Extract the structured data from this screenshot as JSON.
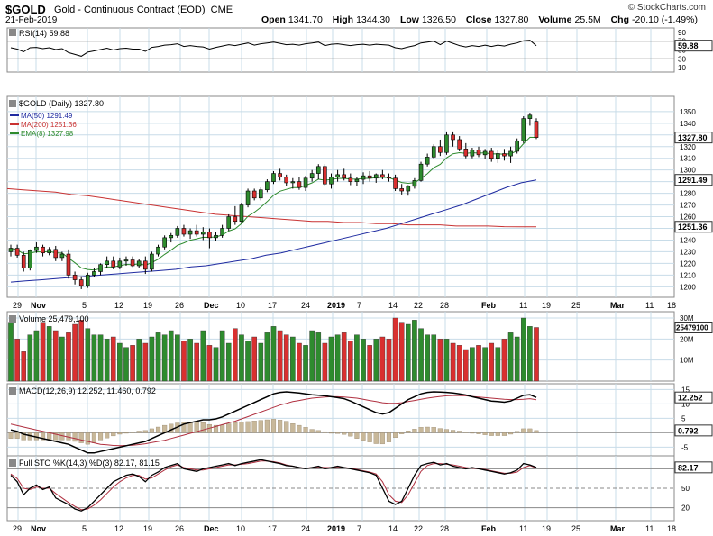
{
  "header": {
    "symbol": "$GOLD",
    "description": "Gold - Continuous Contract (EOD)",
    "exchange": "CME",
    "date": "21-Feb-2019",
    "brand": "© StockCharts.com",
    "open_label": "Open",
    "open": "1341.70",
    "high_label": "High",
    "high": "1344.30",
    "low_label": "Low",
    "low": "1326.50",
    "close_label": "Close",
    "close": "1327.80",
    "volume_label": "Volume",
    "volume": "25.5M",
    "chg_label": "Chg",
    "chg": "-20.10 (-1.49%)"
  },
  "colors": {
    "up": "#2e8b2e",
    "down": "#d93030",
    "grid": "#c8dce8",
    "ma50": "#1e2aa0",
    "ma200": "#c83232",
    "ema8": "#2e8b2e",
    "rsi": "#000000",
    "macd": "#000000",
    "signal": "#b03040",
    "hist": "#c8b89a",
    "stok": "#000000",
    "stod": "#b03040"
  },
  "chart_data": [
    {
      "type": "candlestick",
      "legend": "$GOLD (Daily) 1327.80",
      "ylim": [
        1191,
        1363
      ],
      "y_ticks": [
        1200,
        1210,
        1220,
        1230,
        1240,
        1250,
        1260,
        1270,
        1280,
        1290,
        1300,
        1310,
        1320,
        1330,
        1340,
        1350
      ],
      "last_value_label": "1327.80",
      "x_labels": [
        "29",
        "Nov",
        "5",
        "12",
        "19",
        "26",
        "Dec",
        "10",
        "17",
        "24",
        "2019",
        "7",
        "14",
        "22",
        "28",
        "Feb",
        "11",
        "19",
        "25",
        "Mar",
        "11",
        "18"
      ],
      "ohlc": [
        [
          1230,
          1236,
          1226,
          1233
        ],
        [
          1233,
          1236,
          1225,
          1227
        ],
        [
          1227,
          1230,
          1213,
          1216
        ],
        [
          1216,
          1232,
          1214,
          1231
        ],
        [
          1231,
          1238,
          1229,
          1234
        ],
        [
          1234,
          1236,
          1226,
          1229
        ],
        [
          1229,
          1234,
          1227,
          1232
        ],
        [
          1232,
          1235,
          1222,
          1225
        ],
        [
          1225,
          1230,
          1222,
          1228
        ],
        [
          1228,
          1232,
          1207,
          1210
        ],
        [
          1210,
          1213,
          1202,
          1206
        ],
        [
          1206,
          1209,
          1198,
          1201
        ],
        [
          1201,
          1212,
          1199,
          1210
        ],
        [
          1210,
          1216,
          1208,
          1213
        ],
        [
          1213,
          1220,
          1210,
          1219
        ],
        [
          1219,
          1226,
          1216,
          1222
        ],
        [
          1222,
          1226,
          1215,
          1217
        ],
        [
          1217,
          1225,
          1215,
          1222
        ],
        [
          1222,
          1226,
          1218,
          1223
        ],
        [
          1223,
          1226,
          1217,
          1218
        ],
        [
          1218,
          1224,
          1216,
          1222
        ],
        [
          1222,
          1226,
          1211,
          1215
        ],
        [
          1215,
          1230,
          1213,
          1228
        ],
        [
          1228,
          1236,
          1226,
          1234
        ],
        [
          1234,
          1244,
          1232,
          1242
        ],
        [
          1242,
          1246,
          1238,
          1244
        ],
        [
          1244,
          1252,
          1242,
          1250
        ],
        [
          1250,
          1253,
          1243,
          1245
        ],
        [
          1245,
          1250,
          1241,
          1248
        ],
        [
          1248,
          1253,
          1243,
          1245
        ],
        [
          1245,
          1251,
          1240,
          1247
        ],
        [
          1247,
          1250,
          1233,
          1242
        ],
        [
          1242,
          1247,
          1239,
          1244
        ],
        [
          1244,
          1253,
          1242,
          1250
        ],
        [
          1250,
          1262,
          1248,
          1260
        ],
        [
          1260,
          1269,
          1253,
          1256
        ],
        [
          1256,
          1272,
          1254,
          1270
        ],
        [
          1270,
          1284,
          1268,
          1282
        ],
        [
          1282,
          1284,
          1274,
          1276
        ],
        [
          1276,
          1285,
          1274,
          1283
        ],
        [
          1283,
          1292,
          1281,
          1290
        ],
        [
          1290,
          1299,
          1288,
          1297
        ],
        [
          1297,
          1301,
          1291,
          1294
        ],
        [
          1294,
          1296,
          1286,
          1289
        ],
        [
          1289,
          1293,
          1284,
          1290
        ],
        [
          1290,
          1294,
          1283,
          1285
        ],
        [
          1285,
          1295,
          1282,
          1293
        ],
        [
          1293,
          1300,
          1290,
          1297
        ],
        [
          1297,
          1305,
          1292,
          1303
        ],
        [
          1303,
          1305,
          1286,
          1288
        ],
        [
          1288,
          1297,
          1284,
          1294
        ],
        [
          1294,
          1300,
          1290,
          1296
        ],
        [
          1296,
          1301,
          1291,
          1293
        ],
        [
          1293,
          1297,
          1287,
          1290
        ],
        [
          1290,
          1294,
          1286,
          1292
        ],
        [
          1292,
          1298,
          1288,
          1295
        ],
        [
          1295,
          1299,
          1290,
          1293
        ],
        [
          1293,
          1297,
          1289,
          1296
        ],
        [
          1296,
          1300,
          1292,
          1294
        ],
        [
          1294,
          1297,
          1290,
          1293
        ],
        [
          1293,
          1296,
          1282,
          1284
        ],
        [
          1284,
          1288,
          1279,
          1282
        ],
        [
          1282,
          1287,
          1278,
          1286
        ],
        [
          1286,
          1293,
          1284,
          1291
        ],
        [
          1291,
          1307,
          1290,
          1305
        ],
        [
          1305,
          1314,
          1303,
          1311
        ],
        [
          1311,
          1322,
          1309,
          1320
        ],
        [
          1320,
          1326,
          1312,
          1315
        ],
        [
          1315,
          1333,
          1313,
          1330
        ],
        [
          1330,
          1333,
          1320,
          1326
        ],
        [
          1326,
          1329,
          1316,
          1318
        ],
        [
          1318,
          1323,
          1310,
          1312
        ],
        [
          1312,
          1319,
          1310,
          1317
        ],
        [
          1317,
          1320,
          1311,
          1313
        ],
        [
          1313,
          1318,
          1309,
          1316
        ],
        [
          1316,
          1319,
          1307,
          1310
        ],
        [
          1310,
          1317,
          1306,
          1314
        ],
        [
          1314,
          1318,
          1308,
          1312
        ],
        [
          1312,
          1320,
          1306,
          1316
        ],
        [
          1316,
          1327,
          1314,
          1325
        ],
        [
          1325,
          1346,
          1323,
          1344
        ],
        [
          1344,
          1349,
          1338,
          1347
        ],
        [
          1341.7,
          1344.3,
          1326.5,
          1327.8
        ]
      ],
      "ma50": {
        "label": "MA(50) 1291.49",
        "last": "1291.49",
        "values": [
          1204,
          1205,
          1206,
          1207,
          1208,
          1209,
          1210,
          1211,
          1212,
          1213,
          1214,
          1215,
          1217,
          1218,
          1220,
          1222,
          1224,
          1227,
          1229,
          1232,
          1235,
          1238,
          1241,
          1244,
          1247,
          1250,
          1254,
          1258,
          1262,
          1266,
          1270,
          1275,
          1280,
          1285,
          1289,
          1291.49
        ]
      },
      "ma200": {
        "label": "MA(200) 1251.36",
        "last": "1251.36",
        "values": [
          1284,
          1283,
          1282,
          1281,
          1279,
          1278,
          1276,
          1274,
          1272,
          1270,
          1268,
          1266,
          1264,
          1262,
          1261,
          1260,
          1259,
          1258,
          1257,
          1256,
          1256,
          1255,
          1255,
          1254,
          1254,
          1253,
          1253,
          1253,
          1252,
          1252,
          1252,
          1251.5,
          1251.4,
          1251.36
        ]
      },
      "ema8": {
        "label": "EMA(8) 1327.98",
        "last": "1327.98"
      }
    },
    {
      "type": "line",
      "name": "RSI(14) 59.88",
      "ylim": [
        0,
        100
      ],
      "y_ticks": [
        90,
        70,
        50,
        30,
        10
      ],
      "last_value_label": "59.88",
      "values": [
        55,
        52,
        46,
        55,
        56,
        53,
        55,
        51,
        53,
        44,
        40,
        36,
        45,
        48,
        51,
        54,
        50,
        53,
        54,
        52,
        52,
        47,
        56,
        58,
        61,
        62,
        64,
        58,
        60,
        58,
        57,
        52,
        56,
        59,
        62,
        60,
        63,
        66,
        61,
        64,
        66,
        68,
        65,
        62,
        63,
        61,
        64,
        66,
        68,
        60,
        63,
        64,
        62,
        60,
        62,
        63,
        61,
        63,
        62,
        61,
        55,
        53,
        57,
        60,
        66,
        68,
        70,
        62,
        70,
        65,
        60,
        57,
        60,
        58,
        61,
        58,
        61,
        59,
        63,
        66,
        71,
        72,
        59.88
      ]
    },
    {
      "type": "bar",
      "name": "Volume 25,479,100",
      "y_ticks": [
        "30M",
        "20M",
        "10M"
      ],
      "last_value_label": "25479100",
      "values_millions": [
        28,
        20,
        14,
        22,
        24,
        28,
        26,
        24,
        21,
        23,
        27,
        29,
        25,
        22,
        22,
        20,
        21,
        18,
        16,
        17,
        20,
        18,
        21,
        23,
        22,
        24,
        22,
        19,
        20,
        18,
        24,
        17,
        16,
        24,
        18,
        25,
        22,
        19,
        21,
        18,
        23,
        26,
        24,
        22,
        21,
        18,
        17,
        24,
        23,
        18,
        21,
        22,
        23,
        19,
        22,
        20,
        17,
        20,
        21,
        20,
        30,
        28,
        27,
        29,
        25,
        22,
        22,
        20,
        20,
        18,
        17,
        15,
        16,
        17,
        16,
        18,
        16,
        20,
        23,
        21,
        30,
        26,
        25.5
      ]
    },
    {
      "type": "line",
      "name": "MACD(12,26,9) 12.252, 11.460, 0.792",
      "y_ticks": [
        15,
        10,
        5,
        0,
        -5
      ],
      "last_value_label": "12.252",
      "hist_last_label": "0.792",
      "macd": [
        1,
        0.5,
        -0.5,
        -1,
        -1.5,
        -2,
        -2.5,
        -3,
        -3.5,
        -4,
        -5,
        -6,
        -7,
        -7,
        -6.5,
        -6,
        -5.5,
        -5,
        -4.5,
        -4,
        -3.5,
        -3,
        -2,
        -1,
        0,
        1,
        2,
        3,
        3.5,
        4,
        4.5,
        4.5,
        4.8,
        5.5,
        6.5,
        7.5,
        8.5,
        9.5,
        10.5,
        11.5,
        12.5,
        13.5,
        14,
        14.2,
        14,
        13.8,
        13.5,
        13.2,
        13,
        12.8,
        12.5,
        12.2,
        11.8,
        11,
        10,
        9,
        8,
        7,
        6.5,
        7,
        8.5,
        10,
        11.5,
        12.5,
        13.5,
        14,
        14.2,
        14.1,
        14,
        13.8,
        13.5,
        13.1,
        12.5,
        12,
        11.5,
        11,
        10.8,
        10.6,
        11,
        12,
        13,
        13.2,
        12.252
      ],
      "signal": [
        3,
        2.5,
        2,
        1.5,
        1,
        0.5,
        0,
        -0.5,
        -1,
        -1.5,
        -2,
        -2.5,
        -3,
        -3.5,
        -4,
        -4.2,
        -4.4,
        -4.5,
        -4.4,
        -4.3,
        -4.1,
        -3.8,
        -3.4,
        -3,
        -2.6,
        -2,
        -1.4,
        -0.8,
        -0.2,
        0.4,
        1,
        1.6,
        2.2,
        2.8,
        3.4,
        4,
        4.8,
        5.6,
        6.4,
        7.2,
        8,
        8.8,
        9.6,
        10.2,
        10.8,
        11.2,
        11.6,
        12,
        12.2,
        12.4,
        12.5,
        12.5,
        12.4,
        12.2,
        12,
        11.6,
        11.2,
        10.8,
        10.4,
        10.2,
        10.2,
        10.4,
        10.8,
        11.2,
        11.6,
        12,
        12.3,
        12.6,
        12.8,
        12.9,
        12.9,
        12.8,
        12.6,
        12.4,
        12.2,
        12,
        11.8,
        11.6,
        11.5,
        11.5,
        11.6,
        11.8,
        11.46
      ]
    },
    {
      "type": "line",
      "name": "Full STO %K(14,3) %D(3) 82.17, 81.15",
      "y_ticks": [
        80,
        50,
        20
      ],
      "last_value_label": "82.17",
      "k": [
        70,
        60,
        40,
        50,
        55,
        48,
        52,
        35,
        30,
        25,
        18,
        15,
        20,
        30,
        40,
        50,
        60,
        65,
        70,
        72,
        68,
        60,
        70,
        75,
        82,
        85,
        88,
        80,
        78,
        76,
        80,
        82,
        84,
        86,
        88,
        85,
        88,
        90,
        92,
        94,
        92,
        90,
        88,
        85,
        84,
        82,
        80,
        82,
        84,
        80,
        82,
        84,
        82,
        80,
        78,
        76,
        74,
        70,
        50,
        30,
        25,
        30,
        50,
        70,
        85,
        88,
        90,
        86,
        88,
        84,
        82,
        80,
        82,
        80,
        78,
        76,
        74,
        72,
        74,
        78,
        88,
        86,
        82.17
      ],
      "d": [
        72,
        65,
        50,
        48,
        52,
        50,
        50,
        42,
        35,
        28,
        22,
        17,
        18,
        24,
        32,
        42,
        52,
        60,
        66,
        70,
        70,
        64,
        66,
        72,
        78,
        83,
        86,
        82,
        80,
        78,
        78,
        80,
        82,
        84,
        86,
        86,
        87,
        88,
        90,
        92,
        92,
        91,
        89,
        86,
        84,
        82,
        81,
        82,
        83,
        82,
        82,
        83,
        82,
        81,
        79,
        77,
        75,
        72,
        60,
        40,
        30,
        28,
        40,
        58,
        76,
        85,
        88,
        88,
        87,
        86,
        84,
        82,
        81,
        80,
        79,
        77,
        75,
        73,
        73,
        75,
        82,
        85,
        81.15
      ]
    }
  ]
}
